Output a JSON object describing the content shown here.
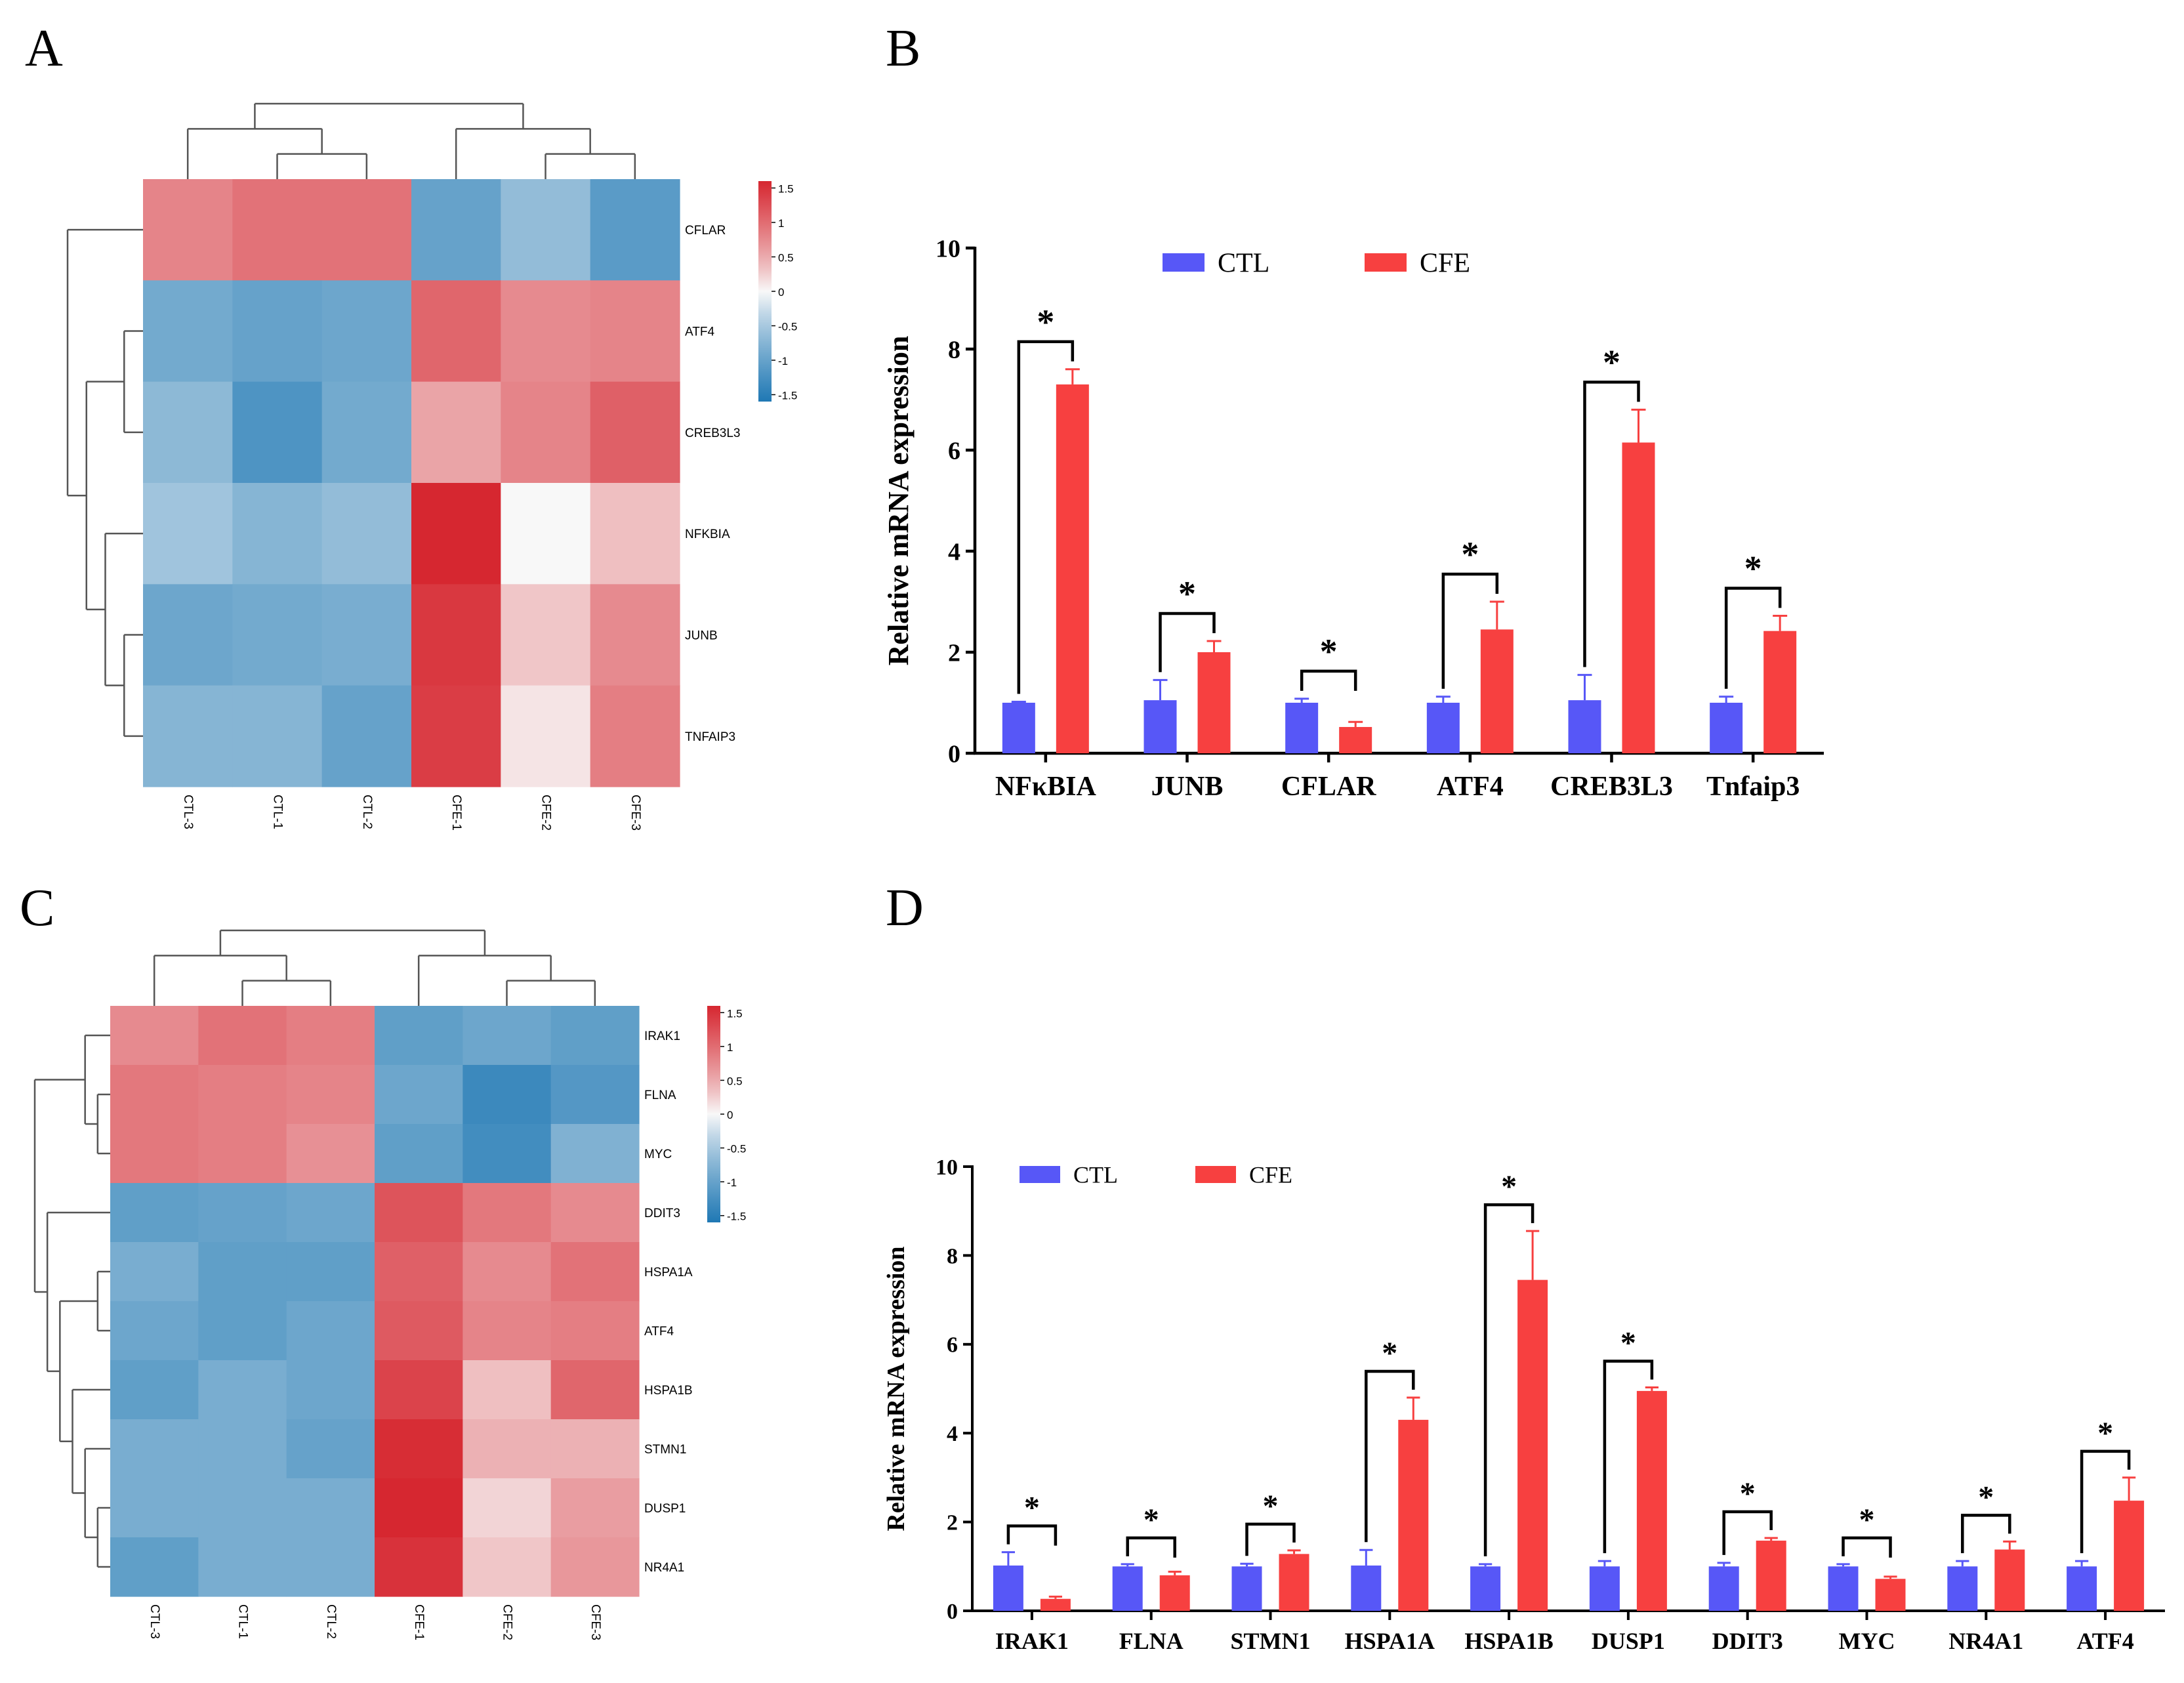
{
  "panels": {
    "a": "A",
    "b": "B",
    "c": "C",
    "d": "D"
  },
  "colors": {
    "ctl": "#5757F7",
    "cfe": "#F74040",
    "axis": "#000000",
    "tree": "#555555"
  },
  "chart_data": [
    {
      "id": "A",
      "type": "heatmap",
      "title": "",
      "columns": [
        "CTL-3",
        "CTL-1",
        "CTL-2",
        "CFE-1",
        "CFE-2",
        "CFE-3"
      ],
      "rows": [
        "CFLAR",
        "ATF4",
        "CREB3L3",
        "NFKBIA",
        "JUNB",
        "TNFAIP3"
      ],
      "values": [
        [
          0.8,
          0.95,
          0.95,
          -1.0,
          -0.65,
          -1.1
        ],
        [
          -0.9,
          -1.0,
          -0.95,
          1.05,
          0.75,
          0.8
        ],
        [
          -0.7,
          -1.2,
          -0.9,
          0.55,
          0.8,
          1.1
        ],
        [
          -0.55,
          -0.75,
          -0.65,
          1.6,
          0.0,
          0.35
        ],
        [
          -0.95,
          -0.9,
          -0.85,
          1.45,
          0.3,
          0.75
        ],
        [
          -0.75,
          -0.75,
          -1.0,
          1.4,
          0.1,
          0.85
        ]
      ],
      "colorbar": {
        "ticks": [
          "1.5",
          "1",
          "0.5",
          "0",
          "-0.5",
          "-1",
          "-1.5"
        ],
        "range": [
          -1.5,
          1.5
        ]
      },
      "column_dendrogram": "((CTL-3,(CTL-1,CTL-2)),(CFE-1,(CFE-2,CFE-3)))",
      "row_dendrogram": "(CFLAR,((ATF4,CREB3L3),(NFKBIA,(JUNB,TNFAIP3))))"
    },
    {
      "id": "B",
      "type": "bar",
      "title": "",
      "categories": [
        "NFκBIA",
        "JUNB",
        "CFLAR",
        "ATF4",
        "CREB3L3",
        "Tnfaip3"
      ],
      "series": [
        {
          "name": "CTL",
          "values": [
            1.0,
            1.05,
            1.0,
            1.0,
            1.05,
            1.0
          ],
          "errors": [
            0.02,
            0.4,
            0.08,
            0.12,
            0.5,
            0.12
          ]
        },
        {
          "name": "CFE",
          "values": [
            7.3,
            2.0,
            0.52,
            2.45,
            6.15,
            2.42
          ],
          "errors": [
            0.3,
            0.22,
            0.1,
            0.55,
            0.65,
            0.3
          ]
        }
      ],
      "significance": [
        "*",
        "*",
        "*",
        "*",
        "*",
        "*"
      ],
      "xlabel": "",
      "ylabel": "Relative mRNA expression",
      "ylim": [
        0,
        10
      ],
      "yticks": [
        "0",
        "2",
        "4",
        "6",
        "8",
        "10"
      ],
      "legend": "top-center"
    },
    {
      "id": "C",
      "type": "heatmap",
      "title": "",
      "columns": [
        "CTL-3",
        "CTL-1",
        "CTL-2",
        "CFE-1",
        "CFE-2",
        "CFE-3"
      ],
      "rows": [
        "IRAK1",
        "FLNA",
        "MYC",
        "DDIT3",
        "HSPA1A",
        "ATF4",
        "HSPA1B",
        "STMN1",
        "DUSP1",
        "NR4A1"
      ],
      "values": [
        [
          0.75,
          0.95,
          0.85,
          -1.05,
          -0.95,
          -1.05
        ],
        [
          0.9,
          0.85,
          0.8,
          -0.95,
          -1.35,
          -1.15
        ],
        [
          0.9,
          0.85,
          0.7,
          -1.05,
          -1.3,
          -0.8
        ],
        [
          -1.05,
          -1.0,
          -0.95,
          1.2,
          0.9,
          0.75
        ],
        [
          -0.85,
          -1.05,
          -1.05,
          1.1,
          0.75,
          0.95
        ],
        [
          -0.95,
          -1.05,
          -0.95,
          1.15,
          0.8,
          0.85
        ],
        [
          -1.05,
          -0.85,
          -0.95,
          1.35,
          0.35,
          1.05
        ],
        [
          -0.85,
          -0.85,
          -1.0,
          1.55,
          0.45,
          0.45
        ],
        [
          -0.85,
          -0.85,
          -0.85,
          1.6,
          0.2,
          0.6
        ],
        [
          -1.05,
          -0.85,
          -0.85,
          1.5,
          0.3,
          0.65
        ]
      ],
      "colorbar": {
        "ticks": [
          "1.5",
          "1",
          "0.5",
          "0",
          "-0.5",
          "-1",
          "-1.5"
        ],
        "range": [
          -1.5,
          1.5
        ]
      },
      "column_dendrogram": "((CTL-3,(CTL-1,CTL-2)),(CFE-1,(CFE-2,CFE-3)))",
      "row_dendrogram": "((IRAK1,(FLNA,MYC)),(DDIT3,((HSPA1A,ATF4),(HSPA1B,(STMN1,(DUSP1,NR4A1))))))"
    },
    {
      "id": "D",
      "type": "bar",
      "title": "",
      "categories": [
        "IRAK1",
        "FLNA",
        "STMN1",
        "HSPA1A",
        "HSPA1B",
        "DUSP1",
        "DDIT3",
        "MYC",
        "NR4A1",
        "ATF4"
      ],
      "series": [
        {
          "name": "CTL",
          "values": [
            1.02,
            1.0,
            1.0,
            1.02,
            1.0,
            1.0,
            1.0,
            1.0,
            1.0,
            1.0
          ],
          "errors": [
            0.3,
            0.05,
            0.06,
            0.35,
            0.05,
            0.12,
            0.08,
            0.05,
            0.12,
            0.12
          ]
        },
        {
          "name": "CFE",
          "values": [
            0.27,
            0.8,
            1.28,
            4.3,
            7.45,
            4.95,
            1.58,
            0.72,
            1.38,
            2.48
          ],
          "errors": [
            0.05,
            0.08,
            0.08,
            0.5,
            1.1,
            0.08,
            0.06,
            0.05,
            0.18,
            0.52
          ]
        }
      ],
      "significance": [
        "*",
        "*",
        "*",
        "*",
        "*",
        "*",
        "*",
        "*",
        "*",
        "*"
      ],
      "xlabel": "",
      "ylabel": "Relative mRNA expression",
      "ylim": [
        0,
        10
      ],
      "yticks": [
        "0",
        "2",
        "4",
        "6",
        "8",
        "10"
      ],
      "legend": "top-left"
    }
  ]
}
